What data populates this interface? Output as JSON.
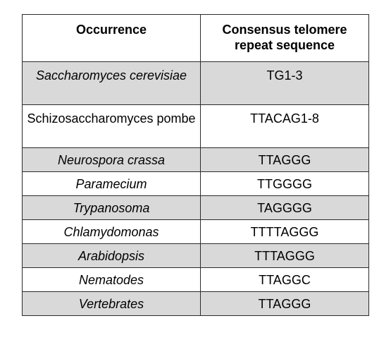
{
  "table": {
    "headers": {
      "occurrence": "Occurrence",
      "sequence": "Consensus telomere repeat sequence"
    },
    "rows": [
      {
        "occurrence": "Saccharomyces cerevisiae",
        "sequence": "TG1-3",
        "italic": true
      },
      {
        "occurrence": "Schizosaccharomyces pombe",
        "sequence": "TTACAG1-8",
        "italic": false
      },
      {
        "occurrence": "Neurospora crassa",
        "sequence": "TTAGGG",
        "italic": true
      },
      {
        "occurrence": "Paramecium",
        "sequence": "TTGGGG",
        "italic": true
      },
      {
        "occurrence": "Trypanosoma",
        "sequence": "TAGGGG",
        "italic": true
      },
      {
        "occurrence": "Chlamydomonas",
        "sequence": "TTTTAGGG",
        "italic": true
      },
      {
        "occurrence": "Arabidopsis",
        "sequence": "TTTAGGG",
        "italic": true
      },
      {
        "occurrence": "Nematodes",
        "sequence": "TTAGGC",
        "italic": true
      },
      {
        "occurrence": "Vertebrates",
        "sequence": "TTAGGG",
        "italic": true
      }
    ]
  },
  "colors": {
    "shaded_row": "#d9d9d9",
    "plain_row": "#ffffff",
    "border": "#2b2b2b"
  }
}
